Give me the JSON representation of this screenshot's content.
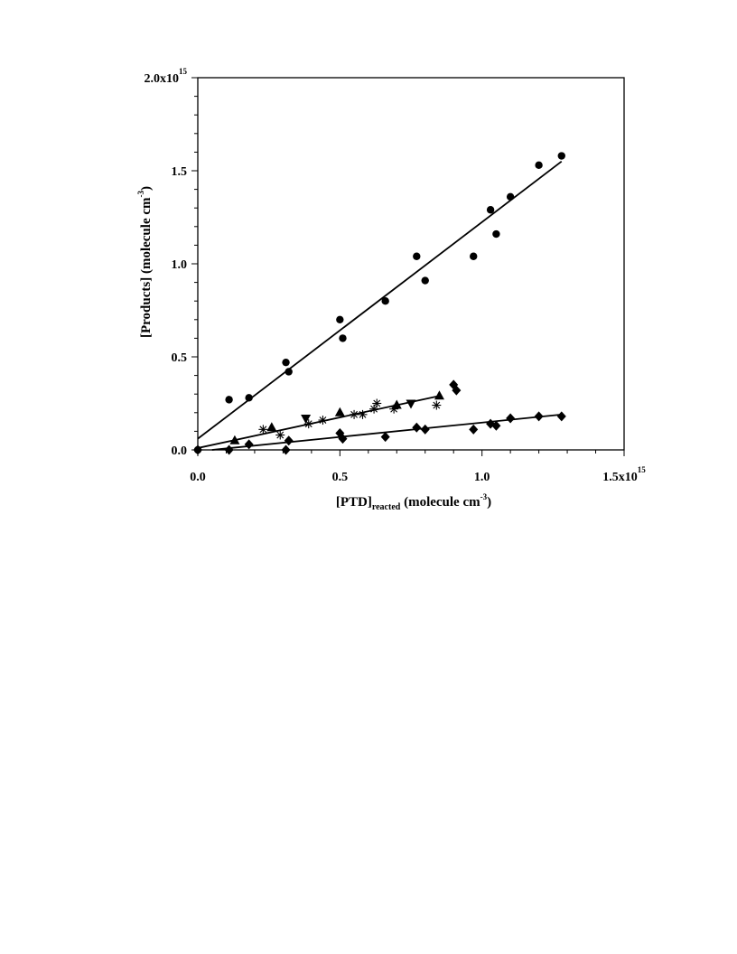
{
  "chart_data": {
    "type": "scatter",
    "xlabel": {
      "main": "[PTD]",
      "sub": "reacted",
      "units": " (molecule cm",
      "exp": "-3",
      "close": ")"
    },
    "ylabel": {
      "main": "[Products] (molecule cm",
      "exp": "-3",
      "close": ")"
    },
    "xlim": [
      0,
      1.5
    ],
    "ylim": [
      0,
      2.0
    ],
    "x_ticks": [
      {
        "v": 0.0,
        "label": "0.0",
        "exp": ""
      },
      {
        "v": 0.5,
        "label": "0.5",
        "exp": ""
      },
      {
        "v": 1.0,
        "label": "1.0",
        "exp": ""
      },
      {
        "v": 1.5,
        "label": "1.5x10",
        "exp": "15"
      }
    ],
    "y_ticks": [
      {
        "v": 0.0,
        "label": "0.0",
        "exp": ""
      },
      {
        "v": 0.5,
        "label": "0.5",
        "exp": ""
      },
      {
        "v": 1.0,
        "label": "1.0",
        "exp": ""
      },
      {
        "v": 1.5,
        "label": "1.5",
        "exp": ""
      },
      {
        "v": 2.0,
        "label": "2.0x10",
        "exp": "15"
      }
    ],
    "series": [
      {
        "marker": "circle",
        "x": [
          0.0,
          0.11,
          0.18,
          0.31,
          0.32,
          0.5,
          0.51,
          0.66,
          0.77,
          0.8,
          0.97,
          1.03,
          1.05,
          1.1,
          1.2,
          1.28
        ],
        "y": [
          0.0,
          0.27,
          0.28,
          0.47,
          0.42,
          0.7,
          0.6,
          0.8,
          1.04,
          0.91,
          1.04,
          1.29,
          1.16,
          1.36,
          1.53,
          1.58
        ],
        "fit": [
          [
            0.0,
            0.06
          ],
          [
            1.28,
            1.55
          ]
        ]
      },
      {
        "marker": "triangle-up",
        "x": [
          0.13,
          0.26,
          0.5,
          0.7,
          0.85
        ],
        "y": [
          0.05,
          0.12,
          0.2,
          0.24,
          0.29
        ],
        "fit": [
          [
            0.0,
            0.01
          ],
          [
            0.85,
            0.29
          ]
        ]
      },
      {
        "marker": "triangle-down",
        "x": [
          0.38,
          0.75
        ],
        "y": [
          0.17,
          0.25
        ],
        "fit": null
      },
      {
        "marker": "asterisk",
        "x": [
          0.23,
          0.29,
          0.39,
          0.44,
          0.55,
          0.58,
          0.62,
          0.63,
          0.69,
          0.84
        ],
        "y": [
          0.11,
          0.08,
          0.14,
          0.16,
          0.19,
          0.19,
          0.22,
          0.25,
          0.22,
          0.24
        ],
        "fit": null
      },
      {
        "marker": "diamond",
        "x": [
          0.0,
          0.11,
          0.18,
          0.31,
          0.32,
          0.5,
          0.51,
          0.66,
          0.77,
          0.8,
          0.9,
          0.91,
          0.97,
          1.03,
          1.05,
          1.1,
          1.2,
          1.28
        ],
        "y": [
          0.0,
          0.0,
          0.03,
          0.0,
          0.05,
          0.09,
          0.06,
          0.07,
          0.12,
          0.11,
          0.35,
          0.32,
          0.11,
          0.14,
          0.13,
          0.17,
          0.18,
          0.18
        ],
        "fit": [
          [
            0.05,
            0.0
          ],
          [
            1.28,
            0.19
          ]
        ]
      }
    ],
    "grid": false,
    "legend": "none"
  }
}
